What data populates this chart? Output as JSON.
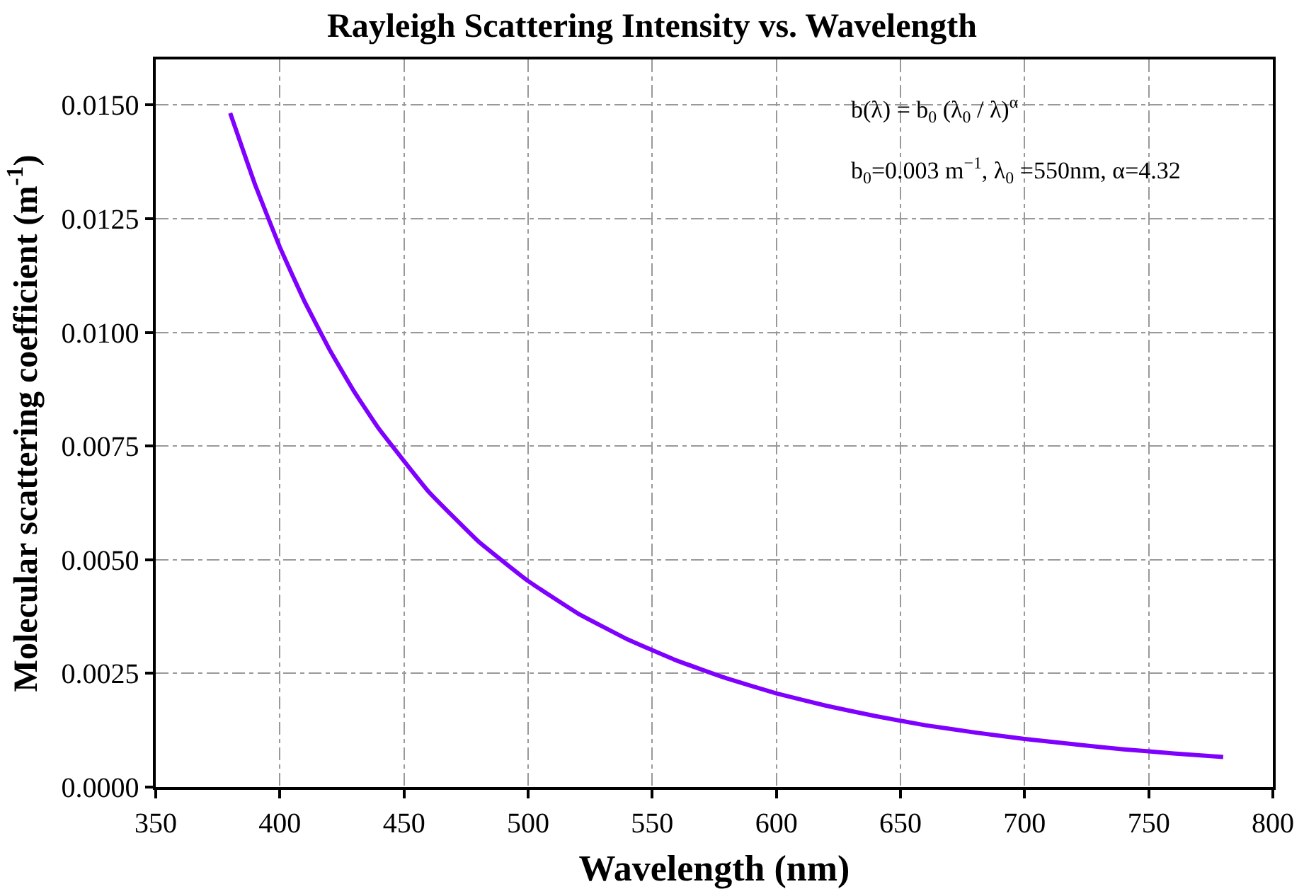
{
  "chart_data": {
    "type": "line",
    "title": "Rayleigh Scattering Intensity vs. Wavelength",
    "xlabel": "Wavelength (nm)",
    "ylabel": "Molecular scattering coefficient (m$^{-1}$)",
    "x": [
      380,
      390,
      400,
      410,
      420,
      430,
      440,
      460,
      480,
      500,
      520,
      540,
      560,
      580,
      600,
      620,
      640,
      660,
      680,
      700,
      720,
      740,
      760,
      780
    ],
    "series": [
      {
        "color": "#7f00ff",
        "values": [
          0.01482,
          0.01325,
          0.01187,
          0.01067,
          0.00962,
          0.00869,
          0.00787,
          0.00649,
          0.0054,
          0.00453,
          0.00382,
          0.00325,
          0.00278,
          0.00239,
          0.00206,
          0.00179,
          0.00156,
          0.00136,
          0.0012,
          0.00106,
          0.00094,
          0.00083,
          0.00074,
          0.00066
        ]
      }
    ],
    "xlim": [
      350,
      800
    ],
    "xticks": [
      350,
      400,
      450,
      500,
      550,
      600,
      650,
      700,
      750,
      800
    ],
    "ylim": [
      0,
      0.016
    ],
    "yticks": [
      {
        "value": 0,
        "label": "0.0000"
      },
      {
        "value": 0.0025,
        "label": "0.0025"
      },
      {
        "value": 0.005,
        "label": "0.0050"
      },
      {
        "value": 0.0075,
        "label": "0.0075"
      },
      {
        "value": 0.01,
        "label": "0.0100"
      },
      {
        "value": 0.0125,
        "label": "0.0125"
      },
      {
        "value": 0.015,
        "label": "0.0150"
      }
    ],
    "annotations": [
      "b(λ) = b$_{0}$ (λ$_{0}$ / λ)$^{α}$",
      "b$_{0}$=0.003 m$^{−1}$, λ$_{0}$ =550nm, α=4.32"
    ],
    "grid": true,
    "legend": false,
    "marker": "none",
    "line_style": "solid"
  }
}
